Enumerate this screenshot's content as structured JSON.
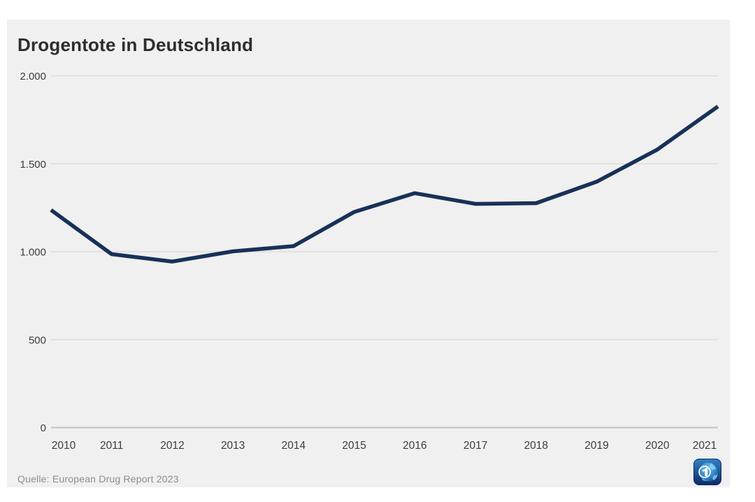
{
  "card": {
    "title": "Drogentote in Deutschland",
    "source": "Quelle: European Drug Report 2023",
    "logo": "tagesschau-ard-logo"
  },
  "colors": {
    "card_bg": "#f0f0f1",
    "line": "#183157",
    "grid": "#d9d9d9",
    "grid_zero": "#c2c2c2",
    "title_text": "#2d2d2d",
    "axis_text": "#3c3c3c",
    "source_text": "#8d8d8d",
    "logo_blue_top": "#3282c4",
    "logo_blue_bottom": "#0b2a66"
  },
  "chart_data": {
    "type": "line",
    "title": "Drogentote in Deutschland",
    "x": [
      "2010",
      "2011",
      "2012",
      "2013",
      "2014",
      "2015",
      "2016",
      "2017",
      "2018",
      "2019",
      "2020",
      "2021"
    ],
    "values": [
      1237,
      986,
      944,
      1002,
      1032,
      1226,
      1333,
      1272,
      1276,
      1398,
      1581,
      1826
    ],
    "ylim": [
      0,
      2000
    ],
    "yticks": [
      0,
      500,
      1000,
      1500,
      2000
    ],
    "ytick_labels": [
      "0",
      "500",
      "1.000",
      "1.500",
      "2.000"
    ],
    "xlabel": "",
    "ylabel": "",
    "grid": true,
    "legend": false,
    "source": "Quelle: European Drug Report 2023"
  }
}
